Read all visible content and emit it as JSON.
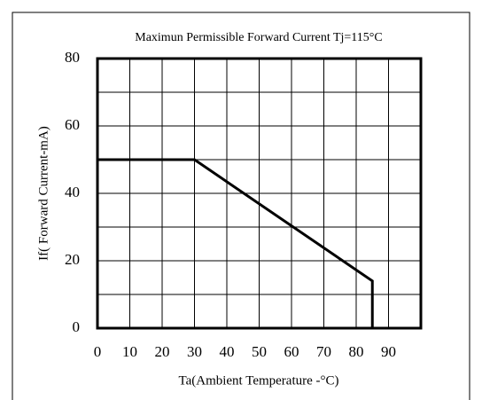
{
  "chart_data": {
    "type": "line",
    "title": "Maximun Permissible Forward Current Tj=115°C",
    "xlabel": "Ta(Ambient Temperature -°C)",
    "ylabel": "If( Forward Current-mA)",
    "series": [
      {
        "name": "If",
        "color": "#000000",
        "x": [
          0,
          30,
          85,
          85
        ],
        "values": [
          50,
          50,
          14,
          0
        ]
      }
    ],
    "xlim": [
      0,
      100
    ],
    "xticks": [
      0,
      10,
      20,
      30,
      40,
      50,
      60,
      70,
      80,
      90
    ],
    "ylim": [
      0,
      80
    ],
    "yticks": [
      0,
      20,
      40,
      60,
      80
    ],
    "minor_yticks": [
      10,
      30,
      50,
      70
    ],
    "grid": true
  }
}
